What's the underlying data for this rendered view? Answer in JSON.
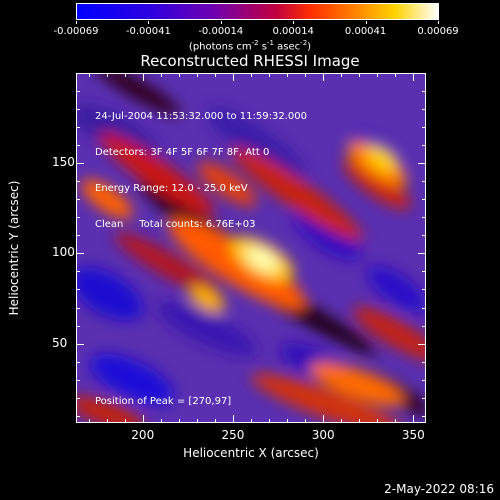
{
  "colorbar": {
    "tick_labels": [
      "-0.00069",
      "-0.00041",
      "-0.00014",
      "0.00014",
      "0.00041",
      "0.00069"
    ],
    "units": {
      "prefix": "(photons cm",
      "exp1": "-2",
      "mid1": " s",
      "exp2": "-1",
      "mid2": " asec",
      "exp3": "-2",
      "suffix": ")"
    }
  },
  "title": "Reconstructed RHESSI Image",
  "info": {
    "line1": "24-Jul-2004 11:53:32.000 to 11:59:32.000",
    "line2": "Detectors: 3F 4F 5F 6F 7F 8F, Att 0",
    "line3": "Energy Range: 12.0 - 25.0 keV",
    "line4": "Clean     Total counts: 6.76E+03",
    "peak": "Position of Peak = [270,97]"
  },
  "axes": {
    "xlabel": "Heliocentric X (arcsec)",
    "ylabel": "Heliocentric Y (arcsec)",
    "xticks": [
      "200",
      "250",
      "300",
      "350"
    ],
    "yticks": [
      "50",
      "100",
      "150"
    ]
  },
  "timestamp": "2-May-2022 08:16",
  "colors": {
    "low": "#0000ff",
    "mid": "#7000b0",
    "high": "#ff8a00",
    "peak": "#ffffff"
  }
}
